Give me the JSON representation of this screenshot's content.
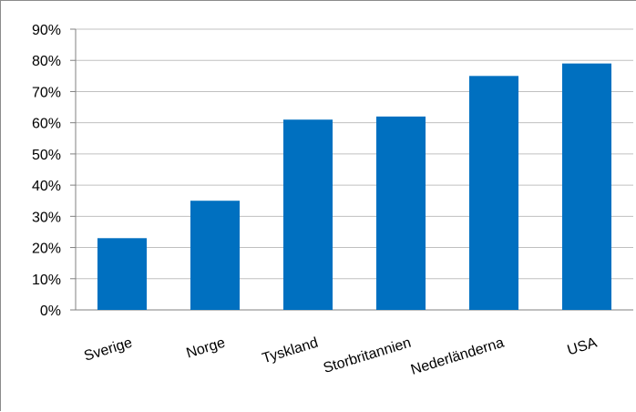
{
  "chart_data": {
    "type": "bar",
    "title": "",
    "xlabel": "",
    "ylabel": "",
    "categories": [
      "Sverige",
      "Norge",
      "Tyskland",
      "Storbritannien",
      "Nederländerna",
      "USA"
    ],
    "values": [
      23,
      35,
      61,
      62,
      75,
      79
    ],
    "ylim": [
      0,
      90
    ],
    "yticks": [
      0,
      10,
      20,
      30,
      40,
      50,
      60,
      70,
      80,
      90
    ],
    "ytick_labels": [
      "0%",
      "10%",
      "20%",
      "30%",
      "40%",
      "50%",
      "60%",
      "70%",
      "80%",
      "90%"
    ],
    "grid": true,
    "legend": "none",
    "bar_color": "#0070C0",
    "grid_color": "#c0c0c0"
  }
}
